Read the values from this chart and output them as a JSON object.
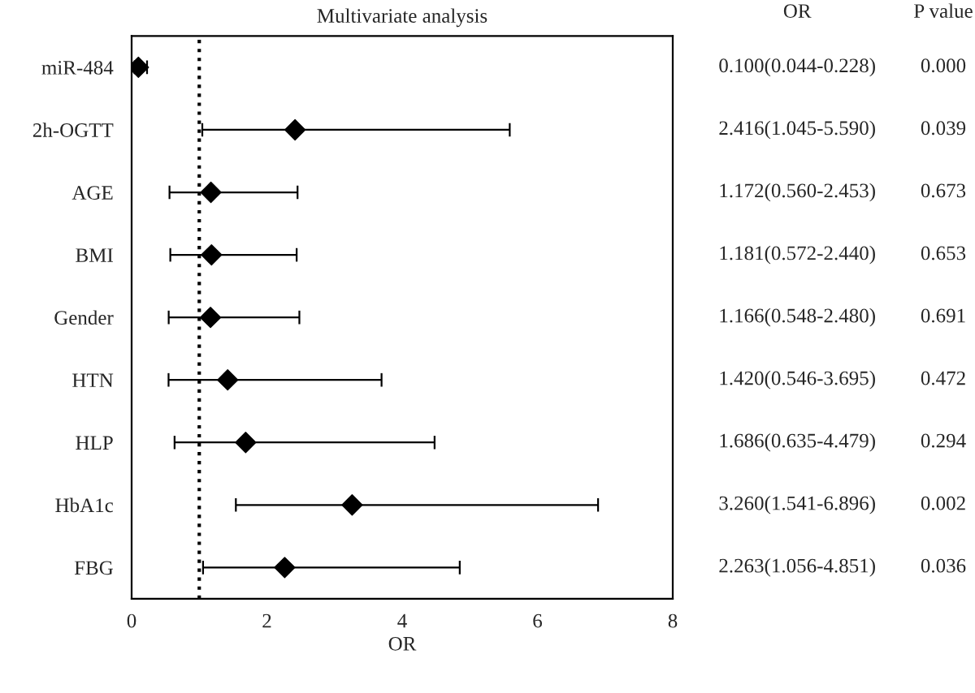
{
  "chart_data": {
    "type": "scatter",
    "orientation": "horizontal",
    "title": "Multivariate analysis",
    "xlabel": "OR",
    "categories": [
      "miR-484",
      "2h-OGTT",
      "AGE",
      "BMI",
      "Gender",
      "HTN",
      "HLP",
      "HbA1c",
      "FBG"
    ],
    "values": [
      0.1,
      2.416,
      1.172,
      1.181,
      1.166,
      1.42,
      1.686,
      3.26,
      2.263
    ],
    "errors": [
      [
        0.044,
        0.228
      ],
      [
        1.045,
        5.59
      ],
      [
        0.56,
        2.453
      ],
      [
        0.572,
        2.44
      ],
      [
        0.548,
        2.48
      ],
      [
        0.546,
        3.695
      ],
      [
        0.635,
        4.479
      ],
      [
        1.541,
        6.896
      ],
      [
        1.056,
        4.851
      ]
    ],
    "value_labels": [
      "0.100(0.044-0.228)",
      "2.416(1.045-5.590)",
      "1.172(0.560-2.453)",
      "1.181(0.572-2.440)",
      "1.166(0.548-2.480)",
      "1.420(0.546-3.695)",
      "1.686(0.635-4.479)",
      "3.260(1.541-6.896)",
      "2.263(1.056-4.851)"
    ],
    "annotations": [
      "OR",
      "P value",
      "0.000",
      "0.039",
      "0.673",
      "0.653",
      "0.691",
      "0.472",
      "0.294",
      "0.002",
      "0.036"
    ],
    "color": "#000000",
    "marker": "diamond",
    "xlim": [
      0,
      8
    ],
    "xticks": [
      0,
      2,
      4,
      6,
      8
    ],
    "ref_lines": [
      {
        "axis": "x",
        "value": 1,
        "line_style": "dotted",
        "color": "#000000"
      }
    ],
    "grid": false,
    "legend": false
  }
}
